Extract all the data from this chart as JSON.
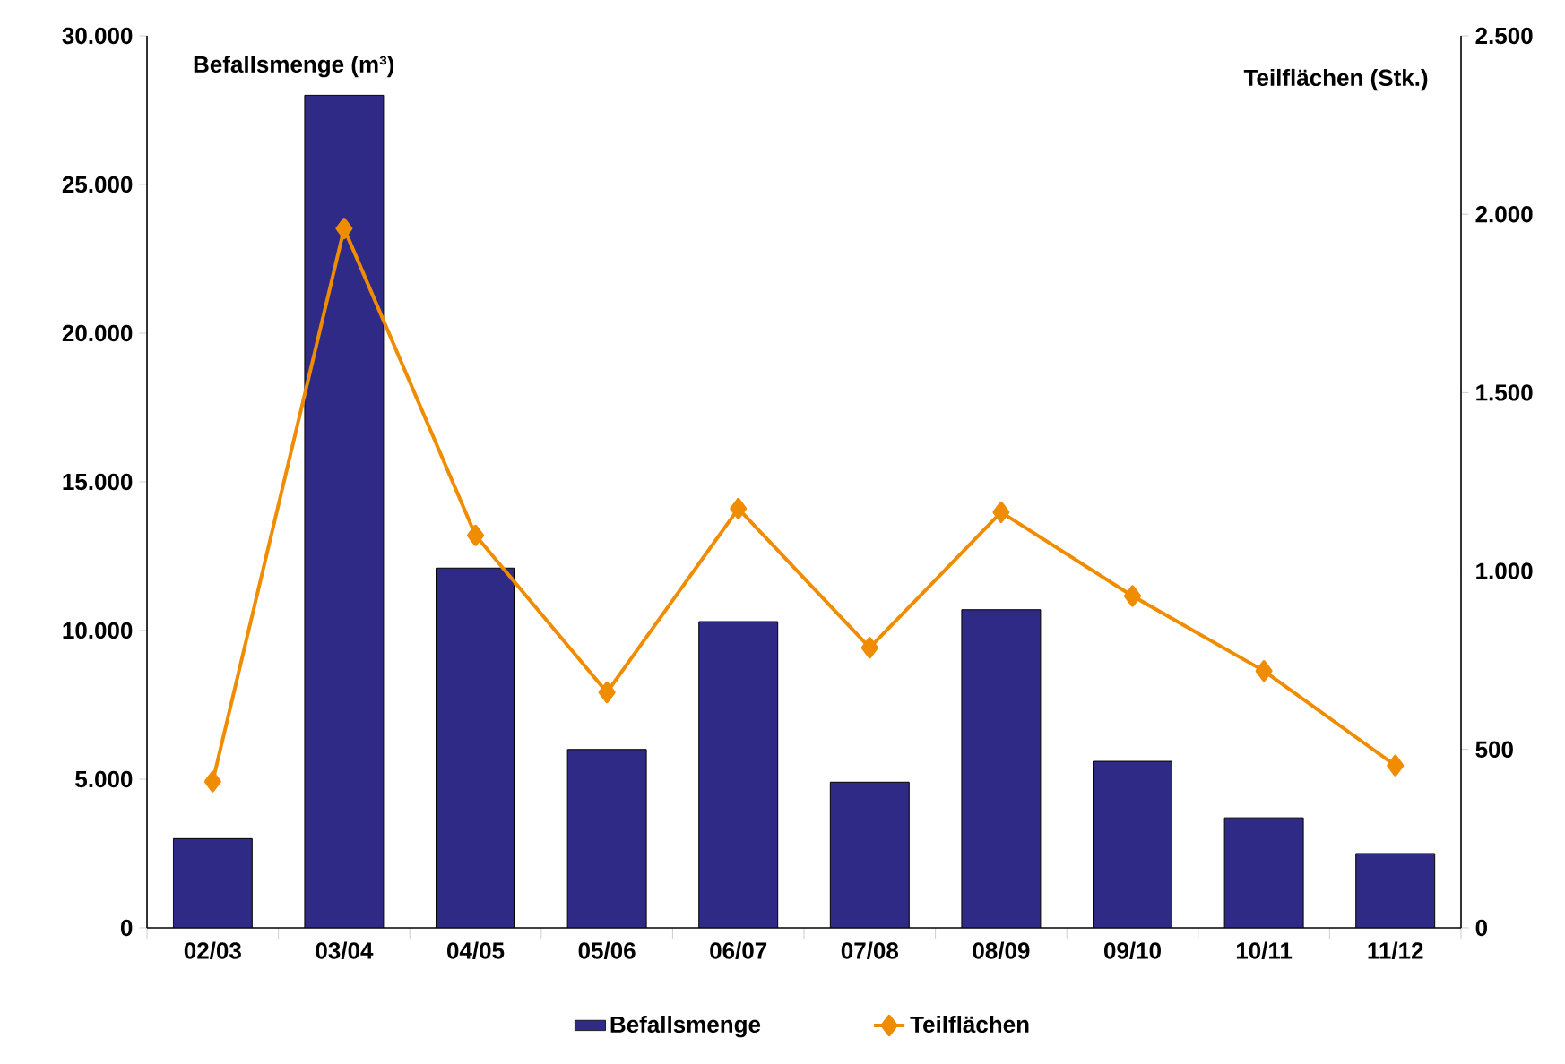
{
  "chart_data": {
    "type": "bar",
    "ylabel": "Befallsmenge (m³)",
    "y2label": "Teilflächen (Stk.)",
    "categories": [
      "02/03",
      "03/04",
      "04/05",
      "05/06",
      "06/07",
      "07/08",
      "08/09",
      "09/10",
      "10/11",
      "11/12"
    ],
    "series": [
      {
        "name": "Befallsmenge",
        "color": "#2e2a85",
        "values": [
          3000,
          28000,
          12100,
          6000,
          10300,
          4900,
          10700,
          5600,
          3700,
          2500
        ]
      },
      {
        "name": "Teilflächen",
        "type": "line",
        "axis": "y2",
        "color": "#f08c00",
        "marker": "diamond",
        "values": [
          410,
          1960,
          1100,
          660,
          1175,
          785,
          1165,
          930,
          720,
          455
        ]
      }
    ],
    "ylim": [
      0,
      30000
    ],
    "yticks": [
      0,
      {
        "value": 5000,
        "label": "5.000"
      },
      {
        "value": 10000,
        "label": "10.000"
      },
      {
        "value": 15000,
        "label": "15.000"
      },
      {
        "value": 20000,
        "label": "20.000"
      },
      {
        "value": 25000,
        "label": "25.000"
      },
      {
        "value": 30000,
        "label": "30.000"
      }
    ],
    "y2lim": [
      0,
      2500
    ],
    "y2ticks": [
      0,
      500,
      {
        "value": 1000,
        "label": "1.000"
      },
      {
        "value": 1500,
        "label": "1.500"
      },
      {
        "value": 2000,
        "label": "2.000"
      },
      {
        "value": 2500,
        "label": "2.500"
      }
    ],
    "legend": "bottom",
    "grid": false
  }
}
